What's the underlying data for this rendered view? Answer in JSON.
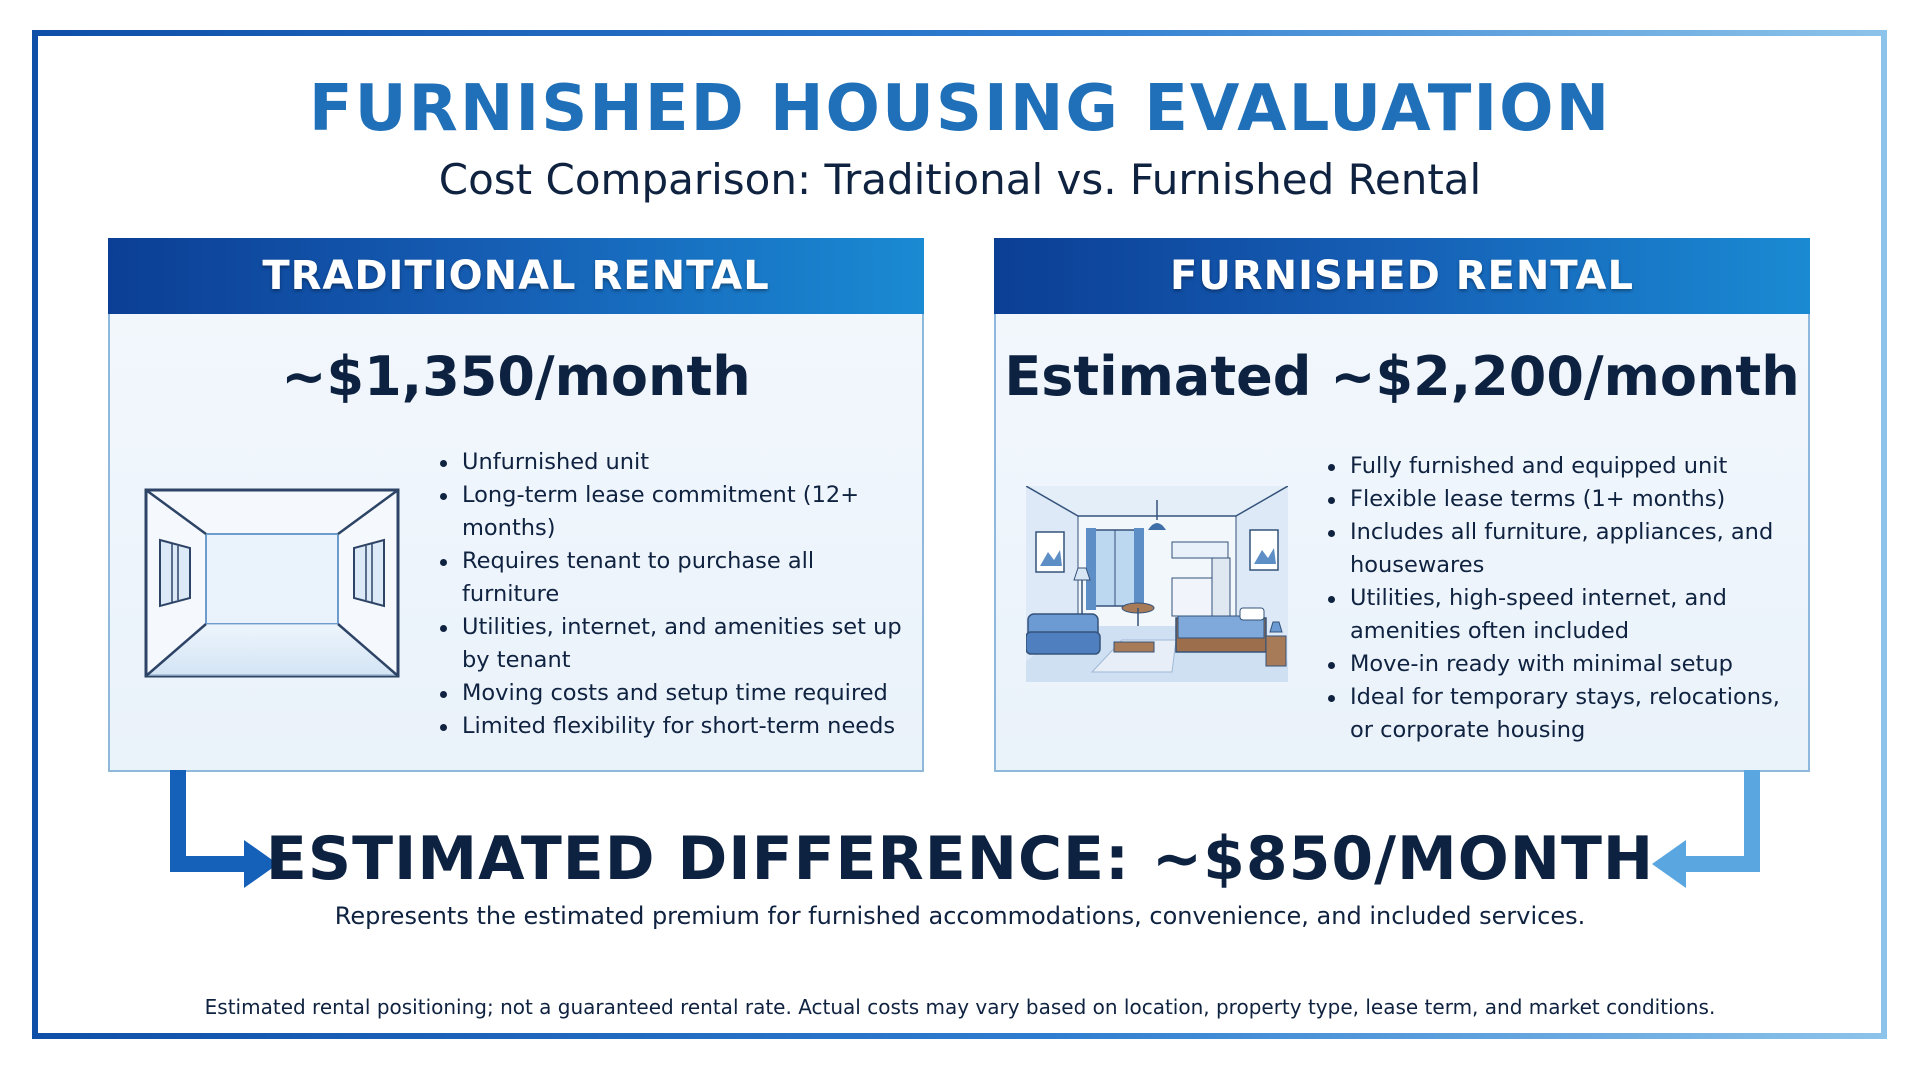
{
  "page": {
    "title": "FURNISHED HOUSING EVALUATION",
    "subtitle": "Cost Comparison: Traditional vs. Furnished Rental"
  },
  "traditional": {
    "header": "TRADITIONAL RENTAL",
    "price": "~$1,350/month",
    "illustration_icon": "empty-room-icon",
    "bullets": [
      "Unfurnished unit",
      "Long-term lease commitment (12+ months)",
      "Requires tenant to purchase all furniture",
      "Utilities, internet, and amenities set up by tenant",
      "Moving costs and setup time required",
      "Limited flexibility for short-term needs"
    ]
  },
  "furnished": {
    "header": "FURNISHED RENTAL",
    "price": "Estimated ~$2,200/month",
    "illustration_icon": "furnished-apartment-icon",
    "bullets": [
      "Fully furnished and equipped unit",
      "Flexible lease terms (1+ months)",
      "Includes all furniture, appliances, and housewares",
      "Utilities, high-speed internet, and amenities often included",
      "Move-in ready with minimal setup",
      "Ideal for temporary stays, relocations, or corporate housing"
    ]
  },
  "difference": {
    "headline": "ESTIMATED DIFFERENCE: ~$850/MONTH",
    "description": "Represents the estimated premium for furnished accommodations, convenience, and included services."
  },
  "footnote": "Estimated rental positioning; not a guaranteed rental rate. Actual costs may vary based on location, property type, lease term, and market conditions.",
  "colors": {
    "title_blue": "#1f70b8",
    "header_dark": "#0b3f95",
    "header_light": "#1a8ad3",
    "text_navy": "#0d2240",
    "panel_border": "#8fb9dc",
    "arrow_left": "#1560b8",
    "arrow_right": "#5aa6e0"
  }
}
